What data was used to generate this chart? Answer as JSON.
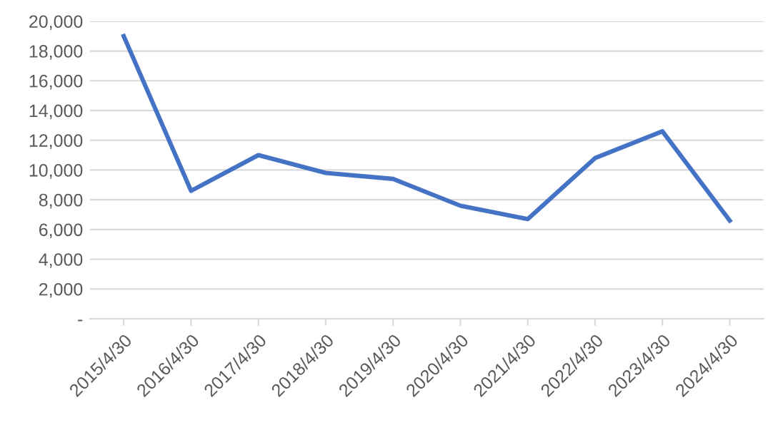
{
  "chart_data": {
    "type": "line",
    "categories": [
      "2015/4/30",
      "2016/4/30",
      "2017/4/30",
      "2018/4/30",
      "2019/4/30",
      "2020/4/30",
      "2021/4/30",
      "2022/4/30",
      "2023/4/30",
      "2024/4/30"
    ],
    "series": [
      {
        "color": "#4472c4",
        "values": [
          19000,
          8600,
          11000,
          9800,
          9400,
          7600,
          6700,
          10800,
          12600,
          6600
        ]
      }
    ],
    "ylim": [
      0,
      20000
    ],
    "yticks": [
      {
        "value": 0,
        "label": "-"
      },
      {
        "value": 2000,
        "label": "2,000"
      },
      {
        "value": 4000,
        "label": "4,000"
      },
      {
        "value": 6000,
        "label": "6,000"
      },
      {
        "value": 8000,
        "label": "8,000"
      },
      {
        "value": 10000,
        "label": "10,000"
      },
      {
        "value": 12000,
        "label": "12,000"
      },
      {
        "value": 14000,
        "label": "14,000"
      },
      {
        "value": 16000,
        "label": "16,000"
      },
      {
        "value": 18000,
        "label": "18,000"
      },
      {
        "value": 20000,
        "label": "20,000"
      }
    ],
    "grid": "y",
    "legend": false,
    "marker": "none",
    "line_style": "solid"
  }
}
